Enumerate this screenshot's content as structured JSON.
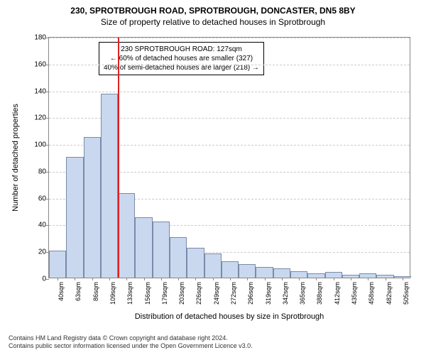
{
  "title_line1": "230, SPROTBROUGH ROAD, SPROTBROUGH, DONCASTER, DN5 8BY",
  "title_line2": "Size of property relative to detached houses in Sprotbrough",
  "chart": {
    "type": "histogram",
    "ylabel": "Number of detached properties",
    "xlabel": "Distribution of detached houses by size in Sprotbrough",
    "ylim": [
      0,
      180
    ],
    "yticks": [
      0,
      20,
      40,
      60,
      80,
      100,
      120,
      140,
      160,
      180
    ],
    "xticks": [
      "40sqm",
      "63sqm",
      "86sqm",
      "109sqm",
      "133sqm",
      "156sqm",
      "179sqm",
      "203sqm",
      "226sqm",
      "249sqm",
      "272sqm",
      "296sqm",
      "319sqm",
      "342sqm",
      "365sqm",
      "388sqm",
      "412sqm",
      "435sqm",
      "458sqm",
      "482sqm",
      "505sqm"
    ],
    "values": [
      20,
      90,
      105,
      137,
      63,
      45,
      42,
      30,
      22,
      18,
      12,
      10,
      8,
      7,
      5,
      3,
      4,
      2,
      3,
      2,
      1
    ],
    "bar_fill": "#c9d8ef",
    "bar_stroke": "#7a8aa8",
    "marker_x_label": "133sqm",
    "marker_color": "#d22",
    "annotation": {
      "line1": "230 SPROTBROUGH ROAD: 127sqm",
      "line2": "← 60% of detached houses are smaller (327)",
      "line3": "40% of semi-detached houses are larger (218) →"
    },
    "background_color": "#ffffff",
    "grid_color": "#cccccc"
  },
  "footer_line1": "Contains HM Land Registry data © Crown copyright and database right 2024.",
  "footer_line2": "Contains public sector information licensed under the Open Government Licence v3.0."
}
